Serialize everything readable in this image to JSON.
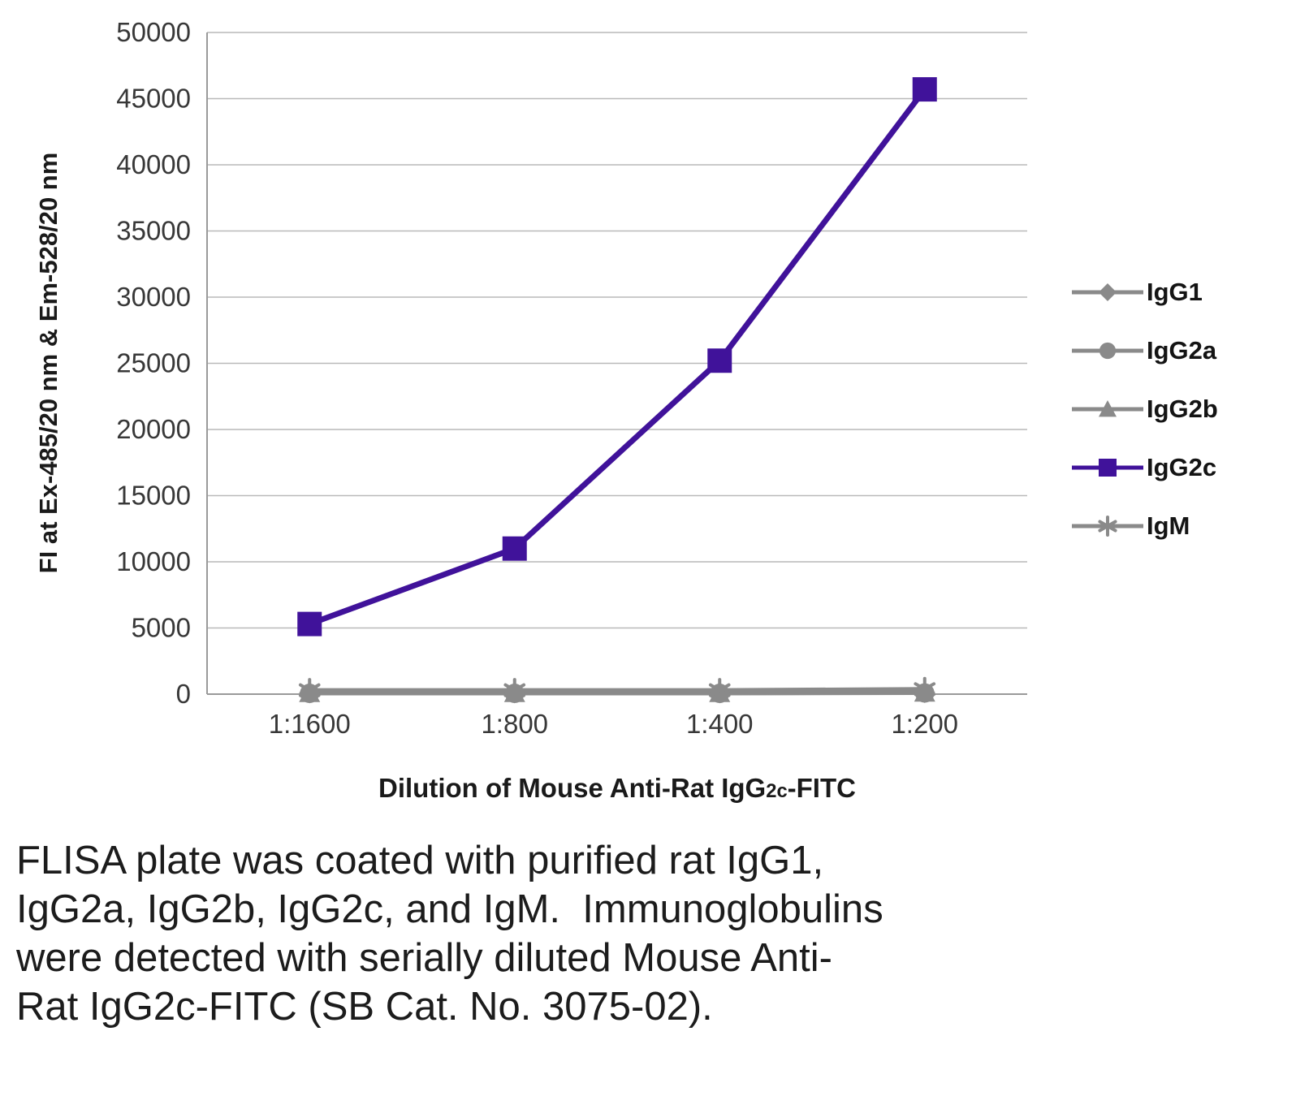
{
  "chart_data": {
    "type": "line",
    "title": "",
    "categories": [
      "1:1600",
      "1:800",
      "1:400",
      "1:200"
    ],
    "series": [
      {
        "name": "IgG1",
        "marker": "diamond",
        "color": "#8a8a8a",
        "values": [
          100,
          100,
          100,
          120
        ]
      },
      {
        "name": "IgG2a",
        "marker": "circle",
        "color": "#8a8a8a",
        "values": [
          60,
          60,
          60,
          90
        ]
      },
      {
        "name": "IgG2b",
        "marker": "triangle",
        "color": "#8a8a8a",
        "values": [
          80,
          80,
          80,
          110
        ]
      },
      {
        "name": "IgG2c",
        "marker": "square",
        "color": "#40129a",
        "values": [
          5300,
          11000,
          25200,
          45700
        ]
      },
      {
        "name": "IgM",
        "marker": "asterisk",
        "color": "#8a8a8a",
        "values": [
          300,
          300,
          300,
          380
        ]
      }
    ],
    "xlabel": "Dilution of Mouse Anti-Rat IgG2c-FITC",
    "xlabel_prefix": "Dilution of Mouse Anti-Rat IgG",
    "xlabel_sub": "2c",
    "xlabel_suffix": "-FITC",
    "ylabel": "FI at Ex-485/20 nm & Em-528/20 nm",
    "ylim": [
      0,
      50000
    ],
    "ytick_step": 5000,
    "grid": true,
    "legend_position": "right"
  },
  "caption": {
    "lines": [
      "FLISA plate was coated with purified rat IgG1,",
      "IgG2a, IgG2b, IgG2c, and IgM.  Immunoglobulins",
      "were detected with serially diluted Mouse Anti-",
      "Rat IgG2c-FITC (SB Cat. No. 3075-02)."
    ]
  }
}
